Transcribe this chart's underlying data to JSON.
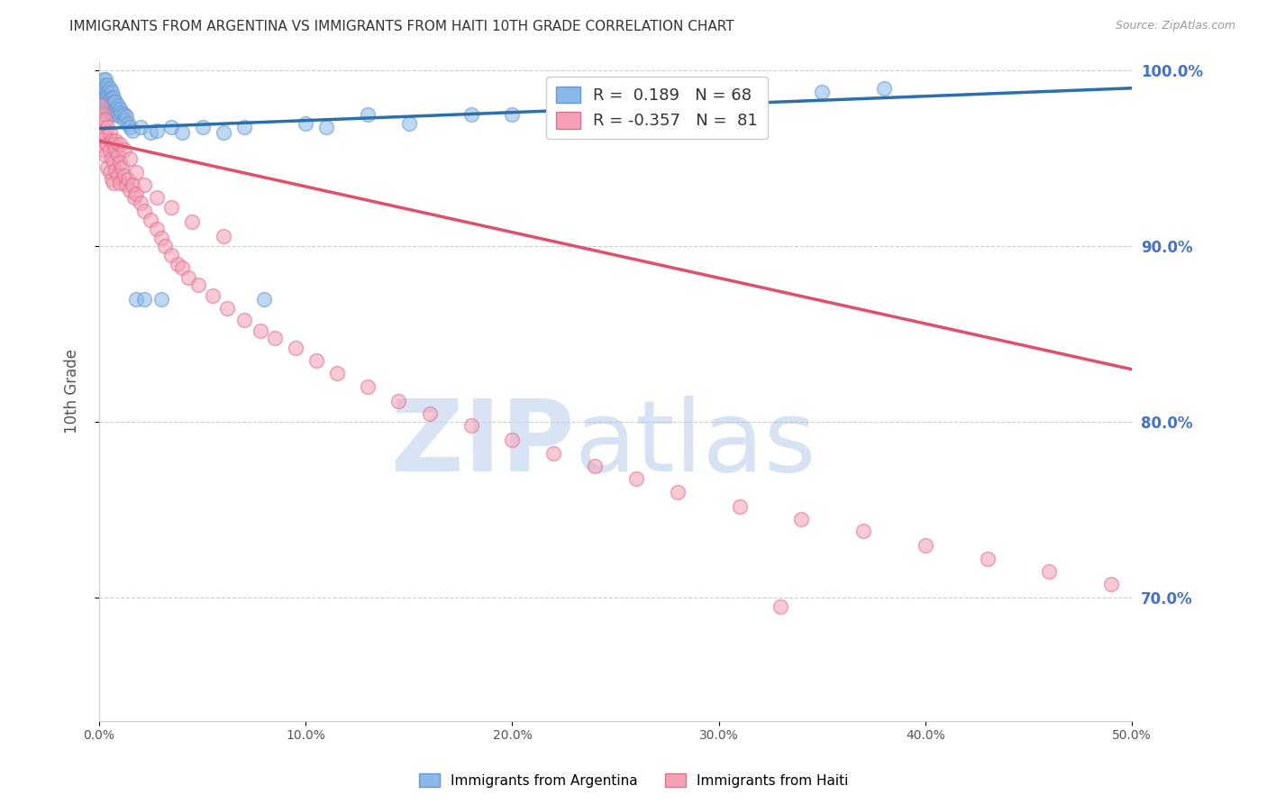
{
  "title": "IMMIGRANTS FROM ARGENTINA VS IMMIGRANTS FROM HAITI 10TH GRADE CORRELATION CHART",
  "source": "Source: ZipAtlas.com",
  "ylabel": "10th Grade",
  "legend_argentina": "Immigrants from Argentina",
  "legend_haiti": "Immigrants from Haiti",
  "R_argentina": 0.189,
  "N_argentina": 68,
  "R_haiti": -0.357,
  "N_haiti": 81,
  "argentina_color": "#8ab8e8",
  "argentina_edge_color": "#6898d0",
  "haiti_color": "#f4a0b5",
  "haiti_edge_color": "#e07090",
  "argentina_line_color": "#2c6fad",
  "haiti_line_color": "#e0506a",
  "watermark_zip": "ZIP",
  "watermark_atlas": "atlas",
  "watermark_color": "#ccddf5",
  "background_color": "#ffffff",
  "title_fontsize": 11,
  "source_fontsize": 9,
  "xlim": [
    0.0,
    0.5
  ],
  "ylim": [
    0.63,
    1.005
  ],
  "yticks": [
    0.7,
    0.8,
    0.9,
    1.0
  ],
  "ytick_labels": [
    "70.0%",
    "80.0%",
    "90.0%",
    "100.0%"
  ],
  "xticks": [
    0.0,
    0.1,
    0.2,
    0.3,
    0.4,
    0.5
  ],
  "xtick_labels": [
    "0.0%",
    "10.0%",
    "20.0%",
    "30.0%",
    "40.0%",
    "50.0%"
  ],
  "argentina_x": [
    0.001,
    0.001,
    0.001,
    0.002,
    0.002,
    0.002,
    0.002,
    0.003,
    0.003,
    0.003,
    0.003,
    0.003,
    0.003,
    0.004,
    0.004,
    0.004,
    0.004,
    0.004,
    0.005,
    0.005,
    0.005,
    0.005,
    0.006,
    0.006,
    0.006,
    0.006,
    0.007,
    0.007,
    0.007,
    0.008,
    0.008,
    0.008,
    0.009,
    0.009,
    0.01,
    0.01,
    0.011,
    0.012,
    0.012,
    0.013,
    0.014,
    0.015,
    0.016,
    0.018,
    0.02,
    0.022,
    0.025,
    0.028,
    0.03,
    0.035,
    0.04,
    0.05,
    0.06,
    0.07,
    0.08,
    0.1,
    0.11,
    0.13,
    0.15,
    0.18,
    0.2,
    0.22,
    0.25,
    0.27,
    0.3,
    0.32,
    0.35,
    0.38
  ],
  "argentina_y": [
    0.99,
    0.985,
    0.98,
    0.995,
    0.992,
    0.988,
    0.984,
    0.995,
    0.99,
    0.985,
    0.982,
    0.978,
    0.975,
    0.992,
    0.988,
    0.985,
    0.982,
    0.978,
    0.99,
    0.985,
    0.98,
    0.976,
    0.988,
    0.984,
    0.98,
    0.976,
    0.985,
    0.982,
    0.978,
    0.982,
    0.978,
    0.975,
    0.98,
    0.976,
    0.978,
    0.974,
    0.976,
    0.975,
    0.972,
    0.974,
    0.97,
    0.968,
    0.966,
    0.87,
    0.968,
    0.87,
    0.965,
    0.966,
    0.87,
    0.968,
    0.965,
    0.968,
    0.965,
    0.968,
    0.87,
    0.97,
    0.968,
    0.975,
    0.97,
    0.975,
    0.975,
    0.978,
    0.98,
    0.982,
    0.984,
    0.986,
    0.988,
    0.99
  ],
  "haiti_x": [
    0.001,
    0.001,
    0.001,
    0.002,
    0.002,
    0.002,
    0.003,
    0.003,
    0.003,
    0.004,
    0.004,
    0.004,
    0.005,
    0.005,
    0.005,
    0.006,
    0.006,
    0.006,
    0.007,
    0.007,
    0.007,
    0.008,
    0.008,
    0.009,
    0.009,
    0.01,
    0.01,
    0.011,
    0.012,
    0.013,
    0.014,
    0.015,
    0.016,
    0.017,
    0.018,
    0.02,
    0.022,
    0.025,
    0.028,
    0.03,
    0.032,
    0.035,
    0.038,
    0.04,
    0.043,
    0.048,
    0.055,
    0.062,
    0.07,
    0.078,
    0.085,
    0.095,
    0.105,
    0.115,
    0.13,
    0.145,
    0.16,
    0.18,
    0.2,
    0.22,
    0.24,
    0.26,
    0.28,
    0.31,
    0.34,
    0.37,
    0.4,
    0.43,
    0.46,
    0.49,
    0.008,
    0.01,
    0.012,
    0.015,
    0.018,
    0.022,
    0.028,
    0.035,
    0.045,
    0.06,
    0.33
  ],
  "haiti_y": [
    0.98,
    0.972,
    0.96,
    0.975,
    0.965,
    0.955,
    0.972,
    0.962,
    0.952,
    0.968,
    0.958,
    0.945,
    0.965,
    0.955,
    0.942,
    0.96,
    0.95,
    0.938,
    0.958,
    0.948,
    0.936,
    0.955,
    0.943,
    0.952,
    0.94,
    0.948,
    0.936,
    0.945,
    0.94,
    0.935,
    0.938,
    0.932,
    0.935,
    0.928,
    0.93,
    0.925,
    0.92,
    0.915,
    0.91,
    0.905,
    0.9,
    0.895,
    0.89,
    0.888,
    0.882,
    0.878,
    0.872,
    0.865,
    0.858,
    0.852,
    0.848,
    0.842,
    0.835,
    0.828,
    0.82,
    0.812,
    0.805,
    0.798,
    0.79,
    0.782,
    0.775,
    0.768,
    0.76,
    0.752,
    0.745,
    0.738,
    0.73,
    0.722,
    0.715,
    0.708,
    0.96,
    0.958,
    0.955,
    0.95,
    0.942,
    0.935,
    0.928,
    0.922,
    0.914,
    0.906,
    0.695
  ]
}
